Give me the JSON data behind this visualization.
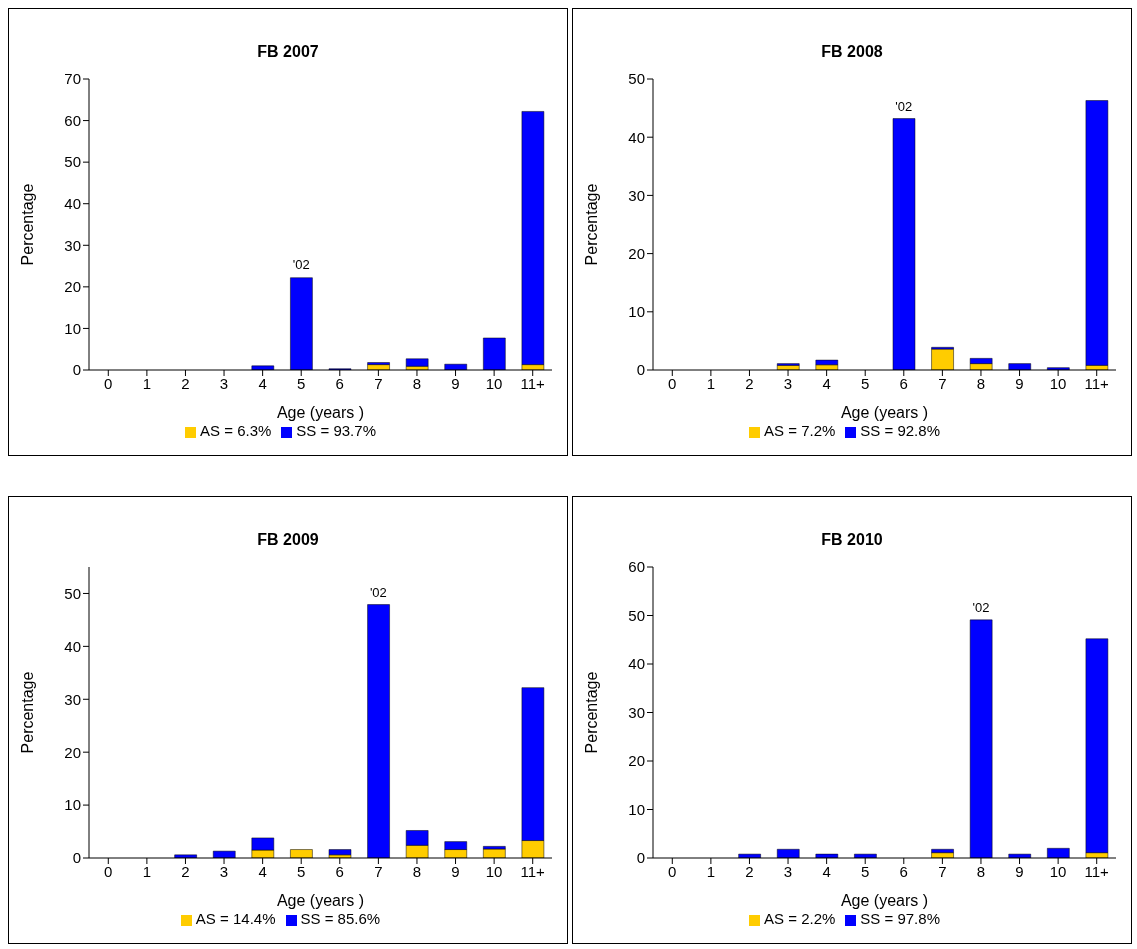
{
  "chart_data": [
    {
      "type": "bar",
      "title": "FB 2007",
      "xlabel": "Age (years )",
      "ylabel": "Percentage",
      "stacked": true,
      "legend": "bottom",
      "grid": false,
      "categories": [
        "0",
        "1",
        "2",
        "3",
        "4",
        "5",
        "6",
        "7",
        "8",
        "9",
        "10",
        "11+"
      ],
      "ylim": [
        0,
        70
      ],
      "yticks": [
        0,
        10,
        20,
        30,
        40,
        50,
        60,
        70
      ],
      "series": [
        {
          "name": "AS = 6.3%",
          "color": "#ffcc00",
          "values": [
            0,
            0,
            0,
            0,
            0,
            null,
            0,
            1.3,
            0.9,
            0,
            0,
            1.3
          ]
        },
        {
          "name": "SS = 93.7%",
          "color": "#0000ff",
          "values": [
            0,
            0,
            0,
            0,
            1.0,
            22.2,
            0.3,
            0.5,
            1.8,
            1.4,
            7.7,
            60.9
          ]
        }
      ],
      "annotations": [
        {
          "text": "'02",
          "x": "5",
          "y": 22.4
        }
      ]
    },
    {
      "type": "bar",
      "title": "FB 2008",
      "xlabel": "Age (years )",
      "ylabel": "Percentage",
      "stacked": true,
      "legend": "bottom",
      "grid": false,
      "categories": [
        "0",
        "1",
        "2",
        "3",
        "4",
        "5",
        "6",
        "7",
        "8",
        "9",
        "10",
        "11+"
      ],
      "ylim": [
        0,
        50
      ],
      "yticks": [
        0,
        10,
        20,
        30,
        40,
        50
      ],
      "series": [
        {
          "name": "AS = 7.2%",
          "color": "#ffcc00",
          "values": [
            0,
            0,
            0,
            0.8,
            0.9,
            0,
            0,
            3.6,
            1.1,
            0,
            0,
            0.8
          ]
        },
        {
          "name": "SS = 92.8%",
          "color": "#0000ff",
          "values": [
            0,
            0,
            0,
            0.3,
            0.8,
            0,
            43.2,
            0.3,
            0.9,
            1.1,
            0.4,
            45.5
          ]
        }
      ],
      "annotations": [
        {
          "text": "'02",
          "x": "6",
          "y": 43.2
        }
      ]
    },
    {
      "type": "bar",
      "title": "FB 2009",
      "xlabel": "Age (years )",
      "ylabel": "Percentage",
      "stacked": true,
      "legend": "bottom",
      "grid": false,
      "categories": [
        "0",
        "1",
        "2",
        "3",
        "4",
        "5",
        "6",
        "7",
        "8",
        "9",
        "10",
        "11+"
      ],
      "ylim": [
        0,
        55
      ],
      "yticks": [
        0,
        10,
        20,
        30,
        40,
        50
      ],
      "series": [
        {
          "name": "AS = 14.4%",
          "color": "#ffcc00",
          "values": [
            0,
            0,
            0,
            0,
            1.5,
            1.6,
            0.6,
            0,
            2.4,
            1.6,
            1.7,
            3.3
          ]
        },
        {
          "name": "SS = 85.6%",
          "color": "#0000ff",
          "values": [
            0,
            0,
            0.6,
            1.3,
            2.3,
            0,
            1.0,
            47.9,
            2.8,
            1.5,
            0.5,
            28.9
          ]
        }
      ],
      "annotations": [
        {
          "text": "'02",
          "x": "7",
          "y": 47.9
        }
      ]
    },
    {
      "type": "bar",
      "title": "FB 2010",
      "xlabel": "Age (years )",
      "ylabel": "Percentage",
      "stacked": true,
      "legend": "bottom",
      "grid": false,
      "categories": [
        "0",
        "1",
        "2",
        "3",
        "4",
        "5",
        "6",
        "7",
        "8",
        "9",
        "10",
        "11+"
      ],
      "ylim": [
        0,
        60
      ],
      "yticks": [
        0,
        10,
        20,
        30,
        40,
        50,
        60
      ],
      "series": [
        {
          "name": "AS = 2.2%",
          "color": "#ffcc00",
          "values": [
            0,
            0,
            0,
            0,
            0,
            0,
            0,
            1.1,
            0,
            0,
            0,
            1.1
          ]
        },
        {
          "name": "SS = 97.8%",
          "color": "#0000ff",
          "values": [
            0,
            0,
            0.8,
            1.8,
            0.8,
            0.8,
            0,
            0.7,
            49.1,
            0.8,
            2.0,
            44.1
          ]
        }
      ],
      "annotations": [
        {
          "text": "'02",
          "x": "8",
          "y": 49.1
        }
      ]
    }
  ]
}
